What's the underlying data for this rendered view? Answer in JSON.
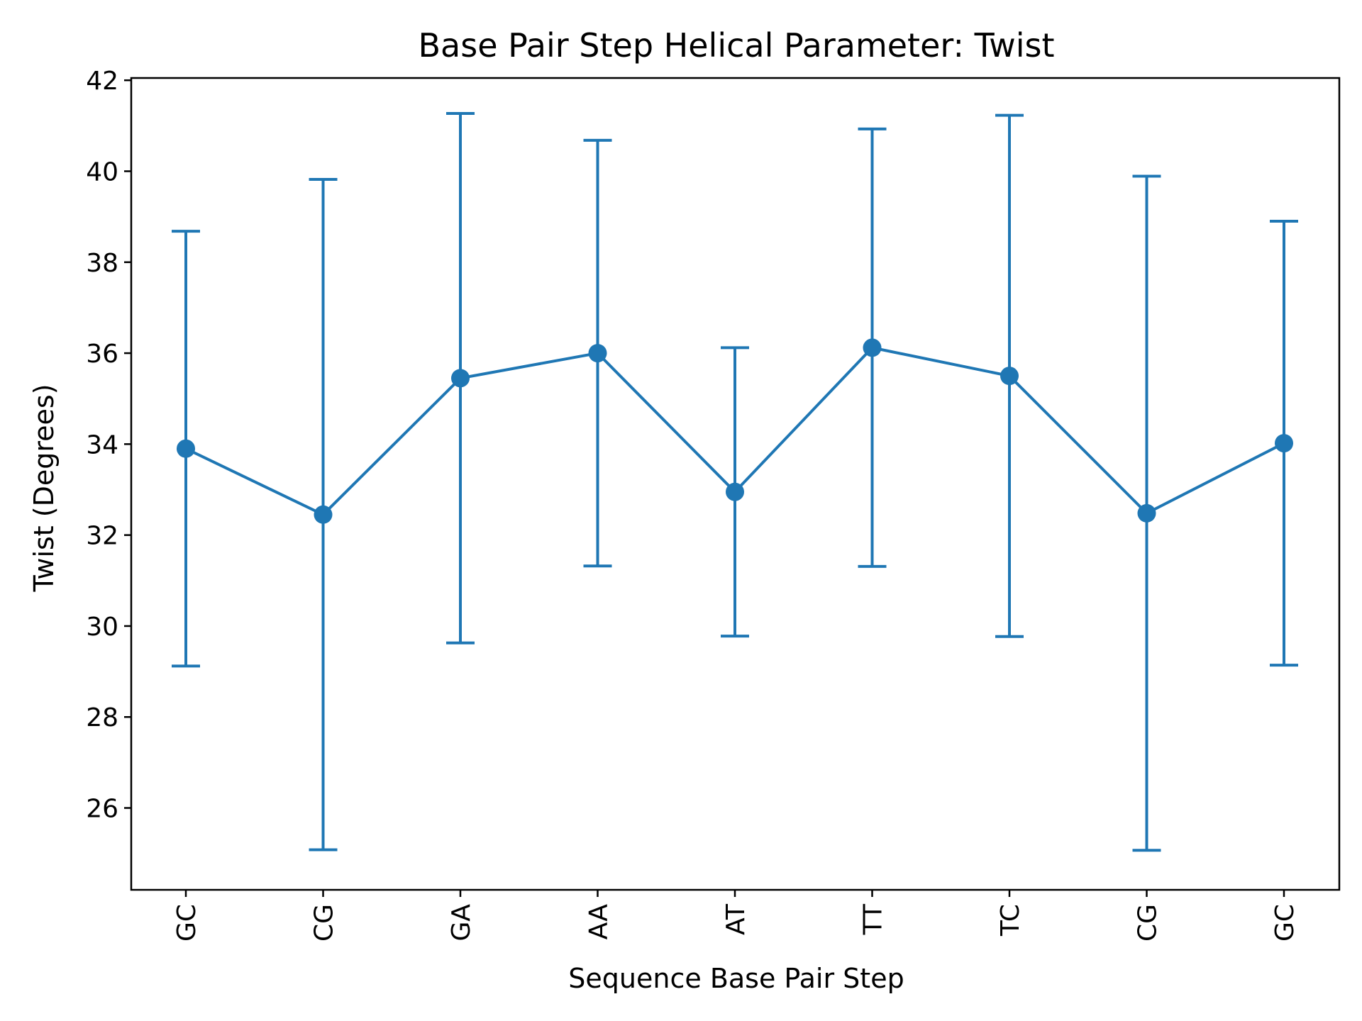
{
  "chart_data": {
    "type": "line",
    "title": "Base Pair Step Helical Parameter: Twist",
    "xlabel": "Sequence Base Pair Step",
    "ylabel": "Twist (Degrees)",
    "categories": [
      "GC",
      "CG",
      "GA",
      "AA",
      "AT",
      "TT",
      "TC",
      "CG",
      "GC"
    ],
    "series": [
      {
        "values": [
          33.9,
          32.45,
          35.45,
          36.0,
          32.95,
          36.12,
          35.5,
          32.48,
          34.02
        ],
        "error": [
          4.78,
          7.37,
          5.82,
          4.68,
          3.17,
          4.81,
          5.73,
          7.41,
          4.88
        ],
        "color": "#1f77b4"
      }
    ],
    "ylim": [
      24.2,
      42.05
    ],
    "yticks": [
      26,
      28,
      30,
      32,
      34,
      36,
      38,
      40,
      42
    ],
    "grid": false,
    "legend": "none"
  }
}
